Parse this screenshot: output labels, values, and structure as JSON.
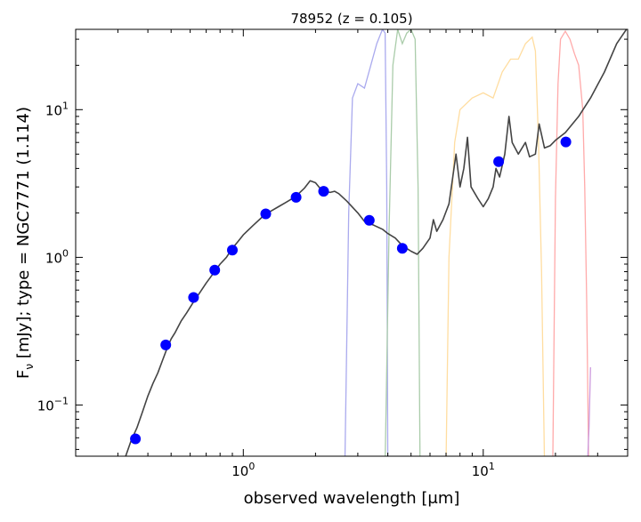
{
  "chart_data": {
    "type": "line",
    "title": "78952 (z = 0.105)",
    "xlabel": "observed wavelength [μm]",
    "ylabel_prefix": "F",
    "ylabel_sub": "ν",
    "ylabel_suffix": " [mJy];  type = NGC7771 (1.114)",
    "x_scale": "log",
    "y_scale": "log",
    "xlim": [
      0.2,
      40
    ],
    "ylim": [
      0.045,
      35
    ],
    "grid": false,
    "x_ticks": [
      {
        "value": 1,
        "base": "10",
        "exp": "0"
      },
      {
        "value": 10,
        "base": "10",
        "exp": "1"
      }
    ],
    "y_ticks": [
      {
        "value": 0.1,
        "base": "10",
        "exp": "−1"
      },
      {
        "value": 1,
        "base": "10",
        "exp": "0"
      },
      {
        "value": 10,
        "base": "10",
        "exp": "1"
      }
    ],
    "template_color": "#444444",
    "template_sed": [
      [
        0.32,
        0.043
      ],
      [
        0.34,
        0.057
      ],
      [
        0.36,
        0.07
      ],
      [
        0.38,
        0.09
      ],
      [
        0.4,
        0.115
      ],
      [
        0.42,
        0.14
      ],
      [
        0.44,
        0.165
      ],
      [
        0.46,
        0.2
      ],
      [
        0.48,
        0.24
      ],
      [
        0.5,
        0.28
      ],
      [
        0.52,
        0.31
      ],
      [
        0.55,
        0.37
      ],
      [
        0.58,
        0.42
      ],
      [
        0.62,
        0.5
      ],
      [
        0.66,
        0.58
      ],
      [
        0.7,
        0.67
      ],
      [
        0.75,
        0.78
      ],
      [
        0.8,
        0.9
      ],
      [
        0.85,
        1.0
      ],
      [
        0.9,
        1.15
      ],
      [
        0.95,
        1.28
      ],
      [
        1.0,
        1.42
      ],
      [
        1.1,
        1.65
      ],
      [
        1.2,
        1.88
      ],
      [
        1.3,
        2.05
      ],
      [
        1.4,
        2.2
      ],
      [
        1.5,
        2.35
      ],
      [
        1.6,
        2.5
      ],
      [
        1.7,
        2.7
      ],
      [
        1.8,
        2.95
      ],
      [
        1.9,
        3.3
      ],
      [
        2.0,
        3.2
      ],
      [
        2.1,
        2.9
      ],
      [
        2.2,
        2.8
      ],
      [
        2.3,
        2.75
      ],
      [
        2.4,
        2.8
      ],
      [
        2.5,
        2.7
      ],
      [
        2.7,
        2.4
      ],
      [
        3.0,
        2.0
      ],
      [
        3.2,
        1.75
      ],
      [
        3.5,
        1.65
      ],
      [
        3.8,
        1.55
      ],
      [
        4.0,
        1.45
      ],
      [
        4.3,
        1.35
      ],
      [
        4.6,
        1.2
      ],
      [
        5.0,
        1.1
      ],
      [
        5.3,
        1.05
      ],
      [
        5.6,
        1.15
      ],
      [
        6.0,
        1.35
      ],
      [
        6.2,
        1.8
      ],
      [
        6.4,
        1.5
      ],
      [
        6.8,
        1.8
      ],
      [
        7.2,
        2.3
      ],
      [
        7.7,
        5.0
      ],
      [
        8.0,
        3.0
      ],
      [
        8.3,
        4.0
      ],
      [
        8.6,
        6.5
      ],
      [
        8.9,
        3.0
      ],
      [
        9.5,
        2.5
      ],
      [
        10.0,
        2.2
      ],
      [
        10.5,
        2.5
      ],
      [
        11.0,
        3.0
      ],
      [
        11.3,
        4.0
      ],
      [
        11.7,
        3.5
      ],
      [
        12.3,
        5.0
      ],
      [
        12.8,
        9.0
      ],
      [
        13.2,
        6.0
      ],
      [
        14.0,
        5.0
      ],
      [
        15.0,
        6.0
      ],
      [
        15.6,
        4.8
      ],
      [
        16.5,
        5.0
      ],
      [
        17.1,
        8.0
      ],
      [
        18.0,
        5.5
      ],
      [
        19.0,
        5.7
      ],
      [
        20.0,
        6.2
      ],
      [
        22.0,
        7.0
      ],
      [
        25.0,
        9.0
      ],
      [
        28.0,
        12.0
      ],
      [
        32.0,
        18.0
      ],
      [
        36.0,
        28.0
      ],
      [
        40.0,
        36.0
      ]
    ],
    "photometry": {
      "color": "#0000ff",
      "points": [
        [
          0.355,
          0.059
        ],
        [
          0.475,
          0.255
        ],
        [
          0.62,
          0.535
        ],
        [
          0.76,
          0.82
        ],
        [
          0.9,
          1.12
        ],
        [
          1.24,
          1.97
        ],
        [
          1.66,
          2.55
        ],
        [
          2.16,
          2.8
        ],
        [
          3.35,
          1.78
        ],
        [
          4.6,
          1.15
        ],
        [
          11.6,
          4.45
        ],
        [
          22.1,
          6.05
        ]
      ]
    },
    "filter_curves": [
      {
        "color": "#aaaaee",
        "x": [
          2.65,
          2.75,
          2.85,
          3.0,
          3.2,
          3.4,
          3.6,
          3.8,
          3.9,
          3.96,
          4.0
        ],
        "y": [
          0.04,
          2.0,
          12.0,
          15.0,
          14.0,
          20.0,
          28.0,
          35.0,
          33.0,
          3.0,
          0.04
        ]
      },
      {
        "color": "#aaccaa",
        "x": [
          3.9,
          4.05,
          4.2,
          4.4,
          4.6,
          4.8,
          5.0,
          5.2,
          5.35,
          5.45
        ],
        "y": [
          0.04,
          1.5,
          20.0,
          35.0,
          28.0,
          33.0,
          35.0,
          30.0,
          3.0,
          0.04
        ]
      },
      {
        "color": "#ffdda0",
        "x": [
          7.0,
          7.2,
          7.6,
          8.0,
          9.0,
          10.0,
          11.0,
          12.0,
          13.0,
          14.0,
          15.0,
          16.0,
          16.5,
          17.0,
          17.5,
          18.0
        ],
        "y": [
          0.04,
          1.0,
          6.0,
          10.0,
          12.0,
          13.0,
          12.0,
          18.0,
          22.0,
          22.0,
          28.0,
          31.0,
          25.0,
          6.0,
          0.8,
          0.04
        ]
      },
      {
        "color": "#ffaaaa",
        "x": [
          19.5,
          20.0,
          20.5,
          21.0,
          22.0,
          23.0,
          24.0,
          25.0,
          26.0,
          26.5,
          27.0,
          27.5
        ],
        "y": [
          0.04,
          2.5,
          15.0,
          30.0,
          34.0,
          30.0,
          24.0,
          20.0,
          10.0,
          3.0,
          0.5,
          0.04
        ]
      },
      {
        "color": "#cc99dd",
        "x": [
          27.2,
          27.6,
          28.0
        ],
        "y": [
          0.04,
          0.07,
          0.18
        ]
      }
    ]
  }
}
